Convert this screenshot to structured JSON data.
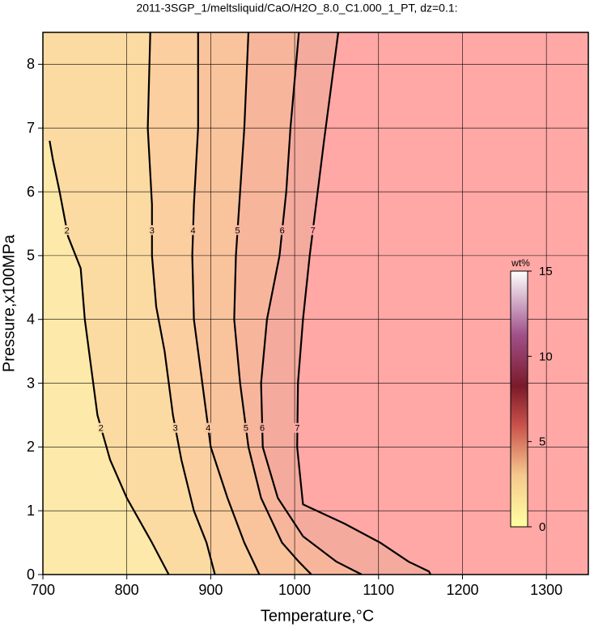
{
  "chart_data": {
    "type": "contour",
    "title": "2011-3SGP_1/meltsliquid/CaO/H2O_8.0_C1.000_1_PT, dz=0.1:",
    "x_label": "Temperature,°C",
    "y_label": "Pressure,x100MPa",
    "xlim": [
      700,
      1350
    ],
    "ylim": [
      0,
      8.5
    ],
    "xticks": [
      700,
      800,
      900,
      1000,
      1100,
      1200,
      1300
    ],
    "yticks": [
      0,
      1,
      2,
      3,
      4,
      5,
      6,
      7,
      8
    ],
    "grid": true,
    "base_color": "#fde9a9",
    "contours": [
      {
        "level": 2,
        "color": "#fcdba3",
        "x": [
          708,
          712,
          720,
          730,
          745,
          750,
          755,
          765,
          780,
          800,
          830,
          850
        ],
        "y": [
          6.8,
          6.5,
          6.0,
          5.3,
          4.8,
          4.0,
          3.5,
          2.5,
          1.8,
          1.2,
          0.5,
          0
        ]
      },
      {
        "level": 3,
        "color": "#fbcf9f",
        "x": [
          828,
          825,
          830,
          830,
          835,
          845,
          855,
          865,
          880,
          895,
          905
        ],
        "y": [
          8.5,
          7.0,
          5.8,
          5.0,
          4.2,
          3.5,
          2.5,
          1.8,
          1.0,
          0.5,
          0
        ]
      },
      {
        "level": 4,
        "color": "#f9c39c",
        "x": [
          885,
          885,
          880,
          878,
          880,
          890,
          900,
          920,
          940,
          958
        ],
        "y": [
          8.5,
          7.0,
          5.8,
          5.0,
          4.0,
          3.0,
          2.0,
          1.2,
          0.5,
          0
        ]
      },
      {
        "level": 5,
        "color": "#f7b69b",
        "x": [
          945,
          940,
          935,
          930,
          928,
          935,
          945,
          960,
          985,
          1005,
          1020
        ],
        "y": [
          8.5,
          7.0,
          6.0,
          5.0,
          4.0,
          3.0,
          2.0,
          1.2,
          0.5,
          0.2,
          0
        ]
      },
      {
        "level": 6,
        "color": "#f5aa9e",
        "x": [
          1005,
          995,
          990,
          982,
          967,
          960,
          962,
          980,
          1010,
          1050,
          1080
        ],
        "y": [
          8.5,
          7.0,
          6.0,
          5.0,
          4.0,
          3.0,
          2.0,
          1.2,
          0.6,
          0.2,
          0
        ]
      },
      {
        "level": 7,
        "color": "#ffa8a6",
        "x": [
          1052,
          1035,
          1018,
          1010,
          1004,
          1003,
          1010,
          1059,
          1102,
          1136,
          1160,
          1162
        ],
        "y": [
          8.5,
          6.8,
          5.0,
          4.0,
          3.0,
          2.0,
          1.1,
          0.8,
          0.5,
          0.2,
          0.05,
          0
        ]
      }
    ],
    "colorbar": {
      "label": "wt%",
      "lim": [
        0,
        15
      ],
      "ticks": [
        0,
        5,
        10,
        15
      ]
    }
  }
}
